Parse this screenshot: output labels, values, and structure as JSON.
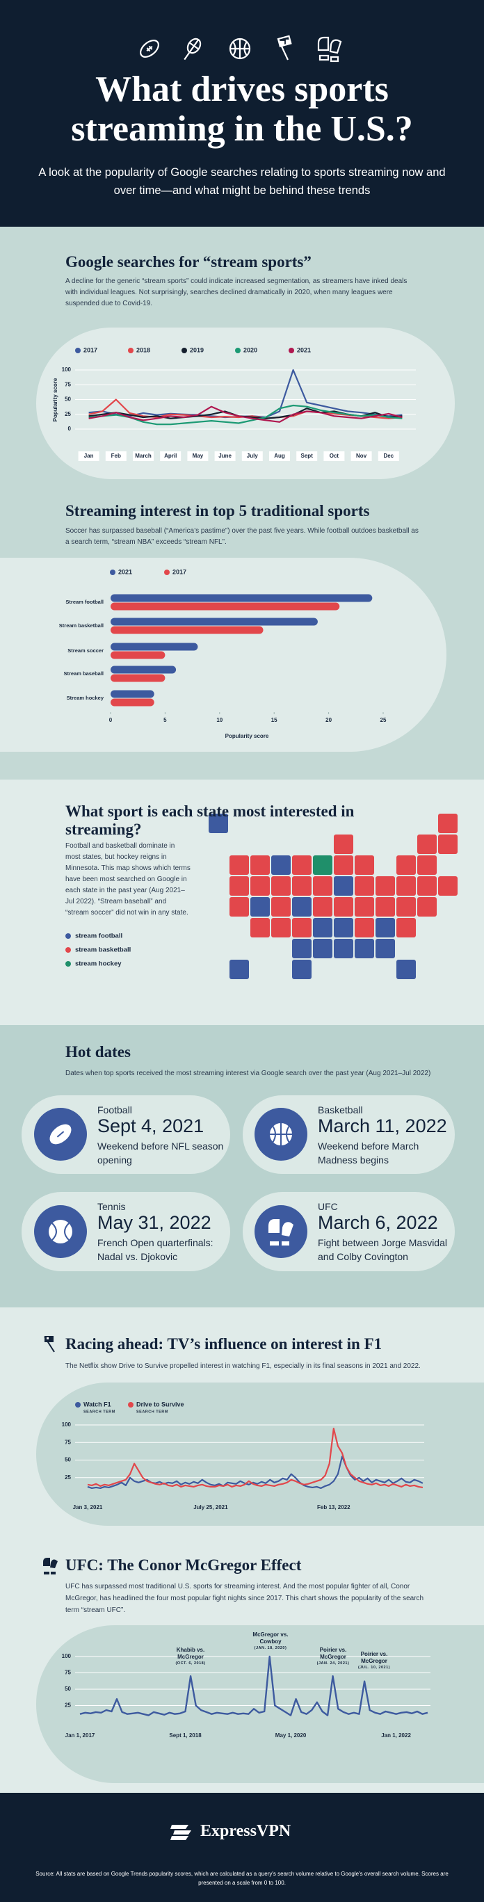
{
  "header": {
    "title": "What drives sports streaming in the U.S.?",
    "subtitle": "A look at the popularity of Google searches relating to sports streaming now and over time—and what might be behind these trends"
  },
  "chart_data": [
    {
      "type": "line",
      "title": "Google searches for “stream sports”",
      "subtitle": "A decline for the generic “stream sports” could indicate increased segmentation, as streamers have inked deals with individual leagues. Not surprisingly, searches declined dramatically in 2020, when many leagues were suspended due to Covid-19.",
      "ylabel": "Popularity score",
      "categories": [
        "Jan",
        null,
        "Feb",
        null,
        "March",
        null,
        "April",
        null,
        "May",
        null,
        "June",
        null,
        "July",
        null,
        "Aug",
        null,
        "Sept",
        null,
        "Oct",
        null,
        "Nov",
        null,
        "Dec",
        null
      ],
      "series": [
        {
          "name": "2017",
          "color": "#3d5a9f",
          "values": [
            28,
            30,
            25,
            22,
            27,
            24,
            26,
            25,
            24,
            22,
            20,
            21,
            22,
            20,
            30,
            100,
            45,
            40,
            35,
            30,
            28,
            25,
            22,
            24
          ]
        },
        {
          "name": "2018",
          "color": "#e2474b",
          "values": [
            25,
            30,
            50,
            27,
            22,
            20,
            25,
            24,
            22,
            20,
            21,
            20,
            22,
            18,
            20,
            22,
            30,
            28,
            26,
            24,
            22,
            20,
            18,
            20
          ]
        },
        {
          "name": "2019",
          "color": "#15202e",
          "values": [
            22,
            25,
            28,
            24,
            20,
            22,
            18,
            20,
            22,
            25,
            30,
            22,
            20,
            18,
            20,
            24,
            35,
            28,
            30,
            25,
            22,
            28,
            20,
            22
          ]
        },
        {
          "name": "2020",
          "color": "#1c9a74",
          "values": [
            20,
            22,
            24,
            20,
            12,
            8,
            8,
            10,
            12,
            14,
            12,
            10,
            15,
            20,
            35,
            40,
            38,
            32,
            28,
            25,
            22,
            24,
            20,
            18
          ]
        },
        {
          "name": "2021",
          "color": "#b0174f",
          "values": [
            18,
            22,
            28,
            20,
            15,
            18,
            22,
            20,
            24,
            38,
            28,
            22,
            18,
            15,
            12,
            25,
            30,
            28,
            22,
            20,
            18,
            22,
            26,
            20
          ]
        }
      ],
      "ylim": [
        0,
        100
      ],
      "yticks": [
        0,
        25,
        50,
        75,
        100
      ],
      "grid": true
    },
    {
      "type": "bar",
      "orientation": "horizontal",
      "title": "Streaming interest in top 5 traditional sports",
      "subtitle": "Soccer has surpassed baseball (“America’s pastime”) over the past five years. While football outdoes basketball as a search term, “stream NBA” exceeds “stream NFL”.",
      "xlabel": "Popularity score",
      "categories": [
        "Stream football",
        "Stream basketball",
        "Stream soccer",
        "Stream baseball",
        "Stream hockey"
      ],
      "series": [
        {
          "name": "2021",
          "color": "#3d5a9f",
          "values": [
            24,
            19,
            8,
            6,
            4
          ]
        },
        {
          "name": "2017",
          "color": "#e2474b",
          "values": [
            21,
            14,
            5,
            5,
            4
          ]
        }
      ],
      "xlim": [
        0,
        25
      ],
      "xticks": [
        0,
        5,
        10,
        15,
        20,
        25
      ]
    },
    {
      "type": "line",
      "title": "Racing ahead: TV’s influence on interest in F1",
      "subtitle": "The Netflix show Drive to Survive propelled interest in watching F1, especially in its final seasons in 2021 and 2022.",
      "x": [
        "2021-01-03",
        "2021-01-10",
        "2021-01-17",
        "2021-01-24",
        "2021-01-31",
        "2021-02-07",
        "2021-02-14",
        "2021-02-21",
        "2021-02-28",
        "2021-03-07",
        "2021-03-14",
        "2021-03-21",
        "2021-03-28",
        "2021-04-04",
        "2021-04-11",
        "2021-04-18",
        "2021-04-25",
        "2021-05-02",
        "2021-05-09",
        "2021-05-16",
        "2021-05-23",
        "2021-05-30",
        "2021-06-06",
        "2021-06-13",
        "2021-06-20",
        "2021-06-27",
        "2021-07-04",
        "2021-07-11",
        "2021-07-18",
        "2021-07-25",
        "2021-08-01",
        "2021-08-08",
        "2021-08-15",
        "2021-08-22",
        "2021-08-29",
        "2021-09-05",
        "2021-09-12",
        "2021-09-19",
        "2021-09-26",
        "2021-10-03",
        "2021-10-10",
        "2021-10-17",
        "2021-10-24",
        "2021-10-31",
        "2021-11-07",
        "2021-11-14",
        "2021-11-21",
        "2021-11-28",
        "2021-12-05",
        "2021-12-12",
        "2021-12-19",
        "2021-12-26",
        "2022-01-02",
        "2022-01-09",
        "2022-01-16",
        "2022-01-23",
        "2022-01-30",
        "2022-02-06",
        "2022-02-13",
        "2022-02-20",
        "2022-02-27",
        "2022-03-06",
        "2022-03-13",
        "2022-03-20",
        "2022-03-27",
        "2022-04-03",
        "2022-04-10",
        "2022-04-17",
        "2022-04-24",
        "2022-05-01",
        "2022-05-08",
        "2022-05-15",
        "2022-05-22",
        "2022-05-29",
        "2022-06-05",
        "2022-06-12",
        "2022-06-19",
        "2022-06-26",
        "2022-07-03",
        "2022-07-10"
      ],
      "series": [
        {
          "name": "Watch F1",
          "term_label": "SEARCH TERM",
          "color": "#3d5a9f",
          "values": [
            12,
            10,
            11,
            10,
            12,
            11,
            13,
            15,
            18,
            14,
            25,
            20,
            18,
            20,
            22,
            18,
            17,
            19,
            16,
            18,
            17,
            20,
            15,
            18,
            16,
            19,
            17,
            22,
            18,
            15,
            14,
            16,
            13,
            18,
            17,
            16,
            20,
            17,
            15,
            18,
            16,
            19,
            17,
            22,
            18,
            20,
            24,
            22,
            30,
            25,
            18,
            14,
            12,
            11,
            12,
            10,
            13,
            15,
            20,
            30,
            55,
            40,
            28,
            22,
            25,
            20,
            24,
            18,
            22,
            20,
            18,
            22,
            17,
            20,
            24,
            19,
            18,
            22,
            20,
            17
          ]
        },
        {
          "name": "Drive to Survive",
          "term_label": "SEARCH TERM",
          "color": "#e2474b",
          "values": [
            15,
            14,
            16,
            13,
            15,
            14,
            16,
            18,
            20,
            22,
            30,
            45,
            35,
            25,
            20,
            18,
            16,
            15,
            17,
            14,
            13,
            15,
            12,
            14,
            13,
            12,
            14,
            15,
            13,
            12,
            12,
            14,
            13,
            15,
            12,
            14,
            13,
            15,
            20,
            16,
            14,
            13,
            15,
            14,
            13,
            15,
            16,
            18,
            22,
            20,
            17,
            15,
            16,
            18,
            20,
            22,
            28,
            45,
            95,
            70,
            60,
            40,
            30,
            25,
            20,
            18,
            16,
            15,
            17,
            14,
            15,
            13,
            16,
            14,
            12,
            15,
            13,
            14,
            12,
            11
          ]
        }
      ],
      "xticks": [
        {
          "value": "2021-01-03",
          "label": "Jan 3, 2021"
        },
        {
          "value": "2021-07-25",
          "label": "July 25, 2021"
        },
        {
          "value": "2022-02-13",
          "label": "Feb 13, 2022"
        }
      ],
      "ylim": [
        0,
        100
      ],
      "yticks": [
        25,
        50,
        75,
        100
      ],
      "grid": true
    },
    {
      "type": "line",
      "title": "UFC: The Conor McGregor Effect",
      "subtitle": "UFC has surpassed most traditional U.S. sports for streaming interest. And the most popular fighter of all, Conor McGregor, has headlined the four most popular fight nights since 2017. This chart shows the popularity of the search term “stream UFC”.",
      "x": [
        "2017-01-01",
        "2017-02-01",
        "2017-03-01",
        "2017-04-01",
        "2017-05-01",
        "2017-06-01",
        "2017-07-01",
        "2017-08-01",
        "2017-09-01",
        "2017-10-01",
        "2017-11-01",
        "2017-12-01",
        "2018-01-01",
        "2018-02-01",
        "2018-03-01",
        "2018-04-01",
        "2018-05-01",
        "2018-06-01",
        "2018-07-01",
        "2018-08-01",
        "2018-09-01",
        "2018-10-01",
        "2018-11-01",
        "2018-12-01",
        "2019-01-01",
        "2019-02-01",
        "2019-03-01",
        "2019-04-01",
        "2019-05-01",
        "2019-06-01",
        "2019-07-01",
        "2019-08-01",
        "2019-09-01",
        "2019-10-01",
        "2019-11-01",
        "2019-12-01",
        "2020-01-01",
        "2020-02-01",
        "2020-03-01",
        "2020-04-01",
        "2020-05-01",
        "2020-06-01",
        "2020-07-01",
        "2020-08-01",
        "2020-09-01",
        "2020-10-01",
        "2020-11-01",
        "2020-12-01",
        "2021-01-01",
        "2021-02-01",
        "2021-03-01",
        "2021-04-01",
        "2021-05-01",
        "2021-06-01",
        "2021-07-01",
        "2021-08-01",
        "2021-09-01",
        "2021-10-01",
        "2021-11-01",
        "2021-12-01",
        "2022-01-01",
        "2022-02-01",
        "2022-03-01",
        "2022-04-01",
        "2022-05-01",
        "2022-06-01",
        "2022-07-01"
      ],
      "series": [
        {
          "name": "stream UFC",
          "color": "#3d5a9f",
          "values": [
            12,
            14,
            13,
            15,
            14,
            18,
            16,
            35,
            15,
            12,
            13,
            14,
            12,
            10,
            15,
            13,
            11,
            14,
            12,
            13,
            16,
            70,
            25,
            18,
            15,
            12,
            14,
            13,
            12,
            14,
            12,
            13,
            12,
            20,
            14,
            16,
            100,
            25,
            20,
            15,
            10,
            35,
            15,
            12,
            18,
            30,
            16,
            10,
            70,
            20,
            15,
            12,
            14,
            12,
            62,
            18,
            14,
            12,
            16,
            14,
            12,
            14,
            15,
            13,
            16,
            12,
            14
          ]
        }
      ],
      "annotations": [
        {
          "label": "Khabib vs. McGregor",
          "date": "(OCT. 6, 2018)"
        },
        {
          "label": "McGregor vs. Cowboy",
          "date": "(JAN. 18, 2020)"
        },
        {
          "label": "Poirier vs. McGregor",
          "date": "(JAN. 24, 2021)"
        },
        {
          "label": "Poirier vs. McGregor",
          "date": "(JUL. 10, 2021)"
        }
      ],
      "xticks": [
        {
          "value": "2017-01-01",
          "label": "Jan 1, 2017"
        },
        {
          "value": "2018-09-01",
          "label": "Sept 1, 2018"
        },
        {
          "value": "2020-05-01",
          "label": "May 1, 2020"
        },
        {
          "value": "2022-01-01",
          "label": "Jan 1, 2022"
        }
      ],
      "ylim": [
        0,
        100
      ],
      "yticks": [
        25,
        50,
        75,
        100
      ],
      "grid": true
    }
  ],
  "map": {
    "title": "What sport is each state most interested in streaming?",
    "text": "Football and basketball dominate in most states, but hockey reigns in Minnesota. This map shows which terms have been most searched on Google in each state in the past year (Aug 2021–Jul 2022). “Stream baseball” and “stream soccer” did not win in any state.",
    "legend": [
      {
        "label": "stream football",
        "color": "#3d5a9f"
      },
      {
        "label": "stream basketball",
        "color": "#e2474b"
      },
      {
        "label": "stream hockey",
        "color": "#1f8f6a"
      }
    ]
  },
  "hot_dates": {
    "title": "Hot dates",
    "subtitle": "Dates when top sports received the most streaming interest via Google search over the past year (Aug 2021–Jul 2022)",
    "cards": [
      {
        "sport": "Football",
        "date": "Sept 4, 2021",
        "note": "Weekend before NFL season opening"
      },
      {
        "sport": "Basketball",
        "date": "March 11, 2022",
        "note": "Weekend before March Madness begins"
      },
      {
        "sport": "Tennis",
        "date": "May 31, 2022",
        "note": "French Open quarterfinals: Nadal vs. Djokovic"
      },
      {
        "sport": "UFC",
        "date": "March 6, 2022",
        "note": "Fight between Jorge Masvidal and Colby Covington"
      }
    ]
  },
  "footer": {
    "brand": "ExpressVPN",
    "source": "Source: All stats are based on Google Trends popularity scores, which are calculated as a query's search volume relative to Google's overall search volume. Scores are presented on a scale from 0 to 100."
  }
}
